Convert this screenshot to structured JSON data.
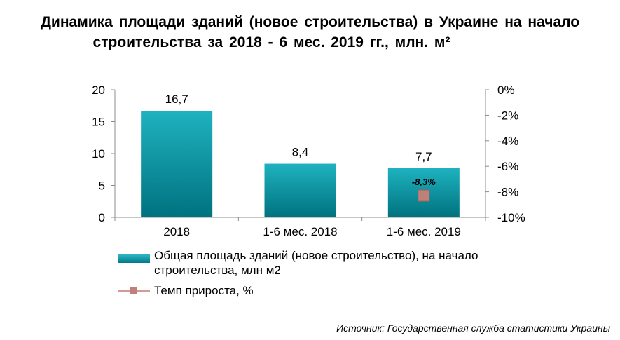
{
  "title": {
    "line1": "Динамика  площади  зданий  (новое  строительства)  в Украине  на начало",
    "line2": "строительства  за 2018  - 6 мес.   2019 гг., млн.  м²"
  },
  "chart_data": {
    "type": "bar",
    "categories": [
      "2018",
      "1-6 мес. 2018",
      "1-6 мес. 2019"
    ],
    "series": [
      {
        "name": "Общая площадь зданий (новое строительство), на начало строительства, млн  м2",
        "type": "bar",
        "axis": "left",
        "values": [
          16.7,
          8.4,
          7.7
        ],
        "labels": [
          "16,7",
          "8,4",
          "7,7"
        ],
        "color": "#0aa0ad"
      },
      {
        "name": "Темп прироста, %",
        "type": "line",
        "axis": "right",
        "values": [
          null,
          null,
          -8.3
        ],
        "labels": [
          null,
          null,
          "-8,3%"
        ],
        "color": "#c0807a"
      }
    ],
    "y_left": {
      "lim": [
        0,
        20
      ],
      "ticks": [
        "0",
        "5",
        "10",
        "15",
        "20"
      ],
      "tick_values": [
        0,
        5,
        10,
        15,
        20
      ]
    },
    "y_right": {
      "lim": [
        -10,
        0
      ],
      "ticks": [
        "-10%",
        "-8%",
        "-6%",
        "-4%",
        "-2%",
        "0%"
      ],
      "tick_values": [
        -10,
        -8,
        -6,
        -4,
        -2,
        0
      ]
    },
    "grid": false,
    "legend_position": "bottom"
  },
  "legend": {
    "bar_label": "Общая площадь зданий (новое строительство), на начало строительства, млн  м2",
    "line_label": "Темп прироста, %"
  },
  "source": "Источник: Государственная служба статистики Украины"
}
